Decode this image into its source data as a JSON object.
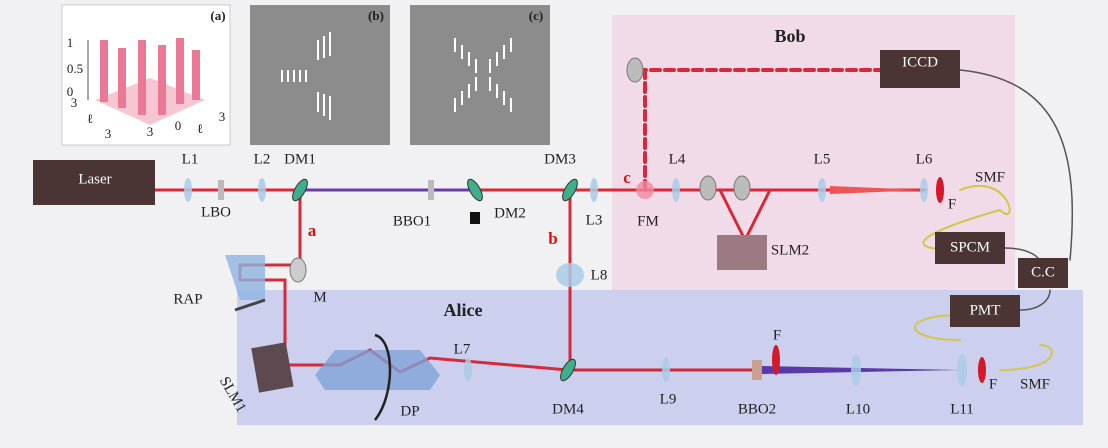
{
  "insets": {
    "a": "(a)",
    "b": "(b)",
    "c": "(c)"
  },
  "inset_a_axis": [
    "1",
    "0.5",
    "0",
    "3",
    "ℓ",
    "3",
    "3",
    "0",
    "ℓ",
    "3"
  ],
  "regions": {
    "bob": "Bob",
    "alice": "Alice"
  },
  "paths": {
    "a": "a",
    "b": "b",
    "c": "c"
  },
  "components": [
    "Laser",
    "L1",
    "L2",
    "DM1",
    "LBO",
    "BBO1",
    "DM2",
    "DM3",
    "L3",
    "FM",
    "L4",
    "SLM2",
    "L5",
    "L6",
    "SMF",
    "F",
    "SPCM",
    "ICCD",
    "C.C",
    "PMT",
    "L8",
    "M",
    "RAP",
    "SLM1",
    "DP",
    "L7",
    "DM4",
    "L9",
    "BBO2",
    "F",
    "L10",
    "L11",
    "F",
    "SMF"
  ]
}
